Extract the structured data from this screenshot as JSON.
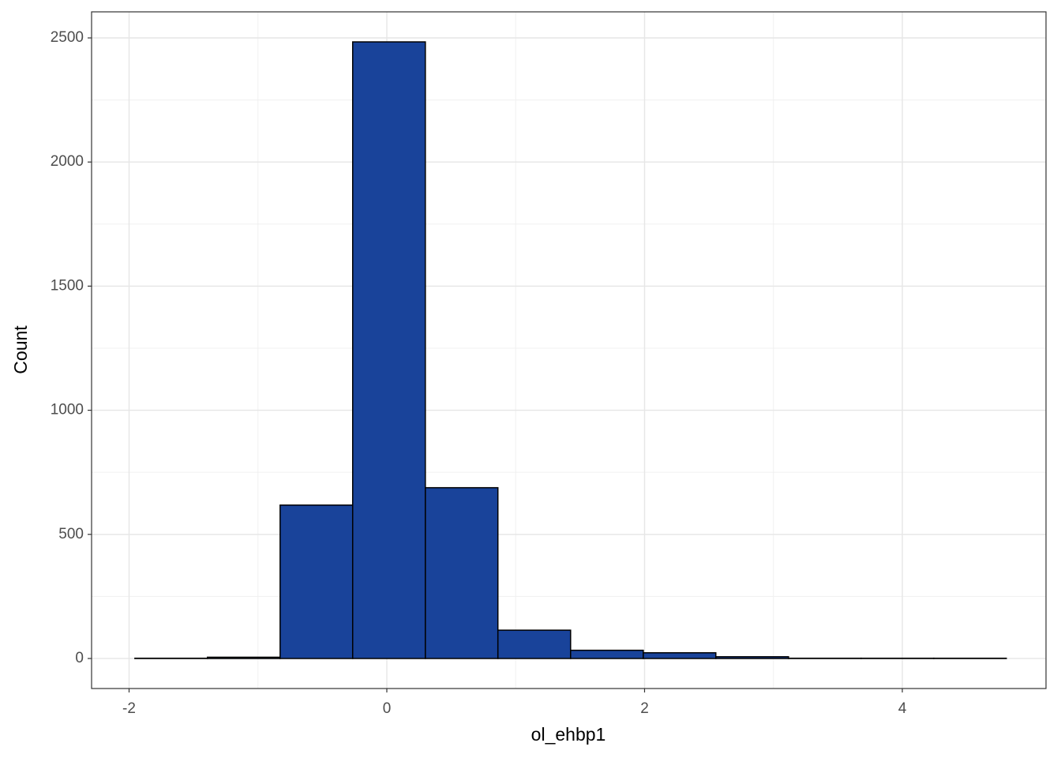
{
  "chart_data": {
    "type": "histogram",
    "x_label": "ol_ehbp1",
    "y_label": "Count",
    "bins": [
      -1.955,
      -1.392,
      -0.828,
      -0.265,
      0.299,
      0.862,
      1.426,
      1.99,
      2.553,
      3.117,
      3.68,
      4.244,
      4.807
    ],
    "values": [
      1,
      5,
      618,
      2484,
      688,
      114,
      33,
      23,
      7,
      1,
      1,
      1
    ],
    "color": "#19439a",
    "xlim": [
      -2.291,
      5.115
    ],
    "xticks": [
      -2,
      0,
      2,
      4
    ],
    "ylim": [
      -121,
      2605
    ],
    "yticks": [
      0,
      500,
      1000,
      1500,
      2000,
      2500
    ],
    "grid": true
  }
}
